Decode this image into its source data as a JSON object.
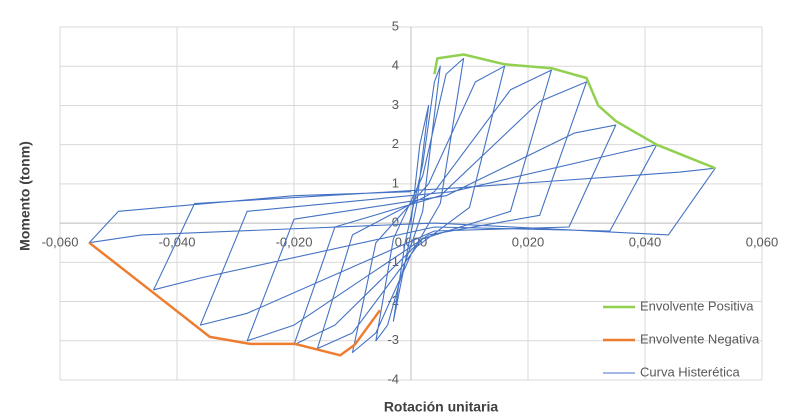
{
  "chart_data": {
    "type": "line",
    "x_label": "Rotación unitaria",
    "y_label": "Momento (tonm)",
    "xlim": [
      -0.06,
      0.06
    ],
    "ylim": [
      -4,
      5
    ],
    "xticks": [
      {
        "value": -0.06,
        "label": "-0,060"
      },
      {
        "value": -0.04,
        "label": "-0,040"
      },
      {
        "value": -0.02,
        "label": "-0,020"
      },
      {
        "value": 0,
        "label": "0,000"
      },
      {
        "value": 0.02,
        "label": "0,020"
      },
      {
        "value": 0.04,
        "label": "0,040"
      },
      {
        "value": 0.06,
        "label": "0,060"
      }
    ],
    "yticks": [
      -4,
      -3,
      -2,
      -1,
      0,
      1,
      2,
      3,
      4,
      5
    ],
    "grid": true,
    "legend": "bottom-right",
    "series": [
      {
        "name": "Envolvente Positiva",
        "color": "#92d050",
        "x": [
          0.004,
          0.0045,
          0.009,
          0.016,
          0.024,
          0.03,
          0.032,
          0.035,
          0.042,
          0.052
        ],
        "values": [
          3.8,
          4.2,
          4.3,
          4.05,
          3.95,
          3.7,
          3.0,
          2.6,
          2.0,
          1.4
        ]
      },
      {
        "name": "Envolvente Negativa",
        "color": "#ed7d31",
        "x": [
          -0.055,
          -0.0446,
          -0.0344,
          -0.0275,
          -0.0198,
          -0.0121,
          -0.0096,
          -0.0053
        ],
        "values": [
          -0.5,
          -1.71,
          -2.9,
          -3.08,
          -3.08,
          -3.37,
          -3.1,
          -2.22
        ]
      },
      {
        "name": "Curva Histerética",
        "color": "#4472c4",
        "x": [
          0,
          0.0015,
          0.003,
          0.001,
          -0.001,
          -0.003,
          -0.001,
          0.002,
          0.004,
          0.005,
          0.002,
          -0.001,
          -0.004,
          -0.006,
          -0.003,
          0.002,
          0.006,
          0.009,
          0.005,
          0.0,
          -0.006,
          -0.01,
          -0.006,
          0.003,
          0.011,
          0.016,
          0.01,
          0.001,
          -0.01,
          -0.016,
          -0.01,
          0.004,
          0.017,
          0.024,
          0.017,
          0.002,
          -0.013,
          -0.02,
          -0.013,
          0.005,
          0.022,
          0.03,
          0.022,
          0.003,
          -0.02,
          -0.028,
          -0.02,
          0.006,
          0.028,
          0.035,
          0.027,
          0.004,
          -0.028,
          -0.036,
          -0.028,
          0.007,
          0.036,
          0.042,
          0.034,
          0.004,
          -0.036,
          -0.044,
          -0.037,
          0.008,
          0.046,
          0.052,
          0.044,
          0.004,
          -0.046,
          -0.055,
          -0.05,
          -0.02,
          0
        ],
        "values": [
          0,
          2.0,
          3.0,
          0.5,
          -1.0,
          -2.5,
          -0.5,
          1.5,
          3.6,
          4.0,
          0.3,
          -1.0,
          -2.6,
          -3.0,
          -0.4,
          1.2,
          3.8,
          4.2,
          0.5,
          -0.8,
          -2.8,
          -3.3,
          -0.5,
          1.0,
          3.6,
          4.0,
          0.4,
          -0.6,
          -2.8,
          -3.2,
          -0.3,
          0.8,
          3.4,
          3.9,
          0.3,
          -0.4,
          -2.6,
          -3.1,
          -0.1,
          0.7,
          3.1,
          3.6,
          0.2,
          -0.3,
          -2.6,
          -3.0,
          0.1,
          0.7,
          2.3,
          2.5,
          -0.1,
          -0.2,
          -2.3,
          -2.6,
          0.3,
          0.8,
          1.8,
          2.0,
          -0.2,
          -0.1,
          -1.4,
          -1.7,
          0.5,
          0.9,
          1.3,
          1.4,
          -0.3,
          0.0,
          -0.3,
          -0.5,
          0.3,
          0.7,
          0.8
        ]
      }
    ]
  }
}
